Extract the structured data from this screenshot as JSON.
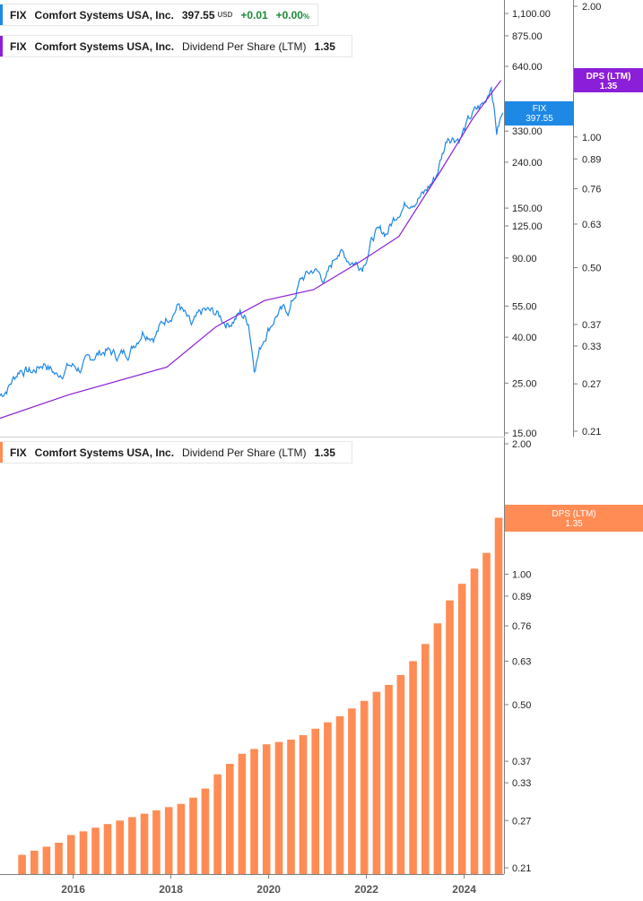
{
  "colors": {
    "price": "#1e88e5",
    "dps_line": "#8b1ed8",
    "dps_bar": "#ff8c55",
    "axis": "#7f7f7f",
    "positive": "#1a8a34"
  },
  "legend_top": {
    "ticker": "FIX",
    "company": "Comfort Systems USA, Inc.",
    "price": "397.55",
    "currency": "USD",
    "change": "+0.01",
    "change_pct": "+0.00",
    "pct_symbol": "%"
  },
  "legend_dps": {
    "ticker": "FIX",
    "company": "Comfort Systems USA, Inc.",
    "metric": "Dividend Per Share (LTM)",
    "value": "1.35"
  },
  "legend_bottom": {
    "ticker": "FIX",
    "company": "Comfort Systems USA, Inc.",
    "metric": "Dividend Per Share (LTM)",
    "value": "1.35"
  },
  "badges": {
    "price_label": "FIX",
    "price_value": "397.55",
    "dps_label": "DPS (LTM)",
    "dps_value": "1.35"
  },
  "chart_data": [
    {
      "type": "line",
      "scale": "log",
      "series": [
        {
          "name": "FIX",
          "axis": "price",
          "points": [
            [
              "2015-01-01",
              22
            ],
            [
              "2015-03-01",
              24
            ],
            [
              "2015-06-01",
              29
            ],
            [
              "2015-09-01",
              28
            ],
            [
              "2015-12-01",
              31
            ],
            [
              "2016-03-01",
              27
            ],
            [
              "2016-06-01",
              30
            ],
            [
              "2016-09-01",
              29
            ],
            [
              "2016-12-01",
              33
            ],
            [
              "2017-03-01",
              35
            ],
            [
              "2017-06-01",
              33
            ],
            [
              "2017-09-01",
              35
            ],
            [
              "2017-12-01",
              43
            ],
            [
              "2018-03-01",
              41
            ],
            [
              "2018-06-01",
              49
            ],
            [
              "2018-09-01",
              56
            ],
            [
              "2018-12-01",
              44
            ],
            [
              "2019-03-01",
              52
            ],
            [
              "2019-06-01",
              51
            ],
            [
              "2019-09-01",
              46
            ],
            [
              "2019-12-01",
              51
            ],
            [
              "2020-02-01",
              47
            ],
            [
              "2020-03-15",
              30
            ],
            [
              "2020-06-01",
              41
            ],
            [
              "2020-09-01",
              51
            ],
            [
              "2020-12-01",
              53
            ],
            [
              "2021-03-01",
              72
            ],
            [
              "2021-06-01",
              80
            ],
            [
              "2021-09-01",
              72
            ],
            [
              "2021-12-01",
              98
            ],
            [
              "2022-03-01",
              88
            ],
            [
              "2022-06-01",
              84
            ],
            [
              "2022-09-01",
              115
            ],
            [
              "2022-12-01",
              117
            ],
            [
              "2023-03-01",
              148
            ],
            [
              "2023-06-01",
              164
            ],
            [
              "2023-09-01",
              172
            ],
            [
              "2023-12-01",
              206
            ],
            [
              "2024-03-01",
              316
            ],
            [
              "2024-06-01",
              310
            ],
            [
              "2024-09-01",
              390
            ],
            [
              "2024-12-01",
              440
            ],
            [
              "2025-01-20",
              540
            ],
            [
              "2025-03-01",
              330
            ],
            [
              "2025-04-15",
              397.55
            ]
          ]
        },
        {
          "name": "Dividend Per Share (LTM)",
          "axis": "dps",
          "points": [
            [
              "2015-01-01",
              0.225
            ],
            [
              "2016-06-01",
              0.255
            ],
            [
              "2018-06-01",
              0.295
            ],
            [
              "2019-06-01",
              0.365
            ],
            [
              "2020-06-01",
              0.42
            ],
            [
              "2021-06-01",
              0.445
            ],
            [
              "2022-06-01",
              0.52
            ],
            [
              "2023-03-01",
              0.59
            ],
            [
              "2024-01-01",
              0.83
            ],
            [
              "2024-09-01",
              1.1
            ],
            [
              "2025-04-01",
              1.35
            ]
          ]
        }
      ],
      "price_axis": {
        "ticks": [
          "1,100.00",
          "875.00",
          "640.00",
          "330.00",
          "240.00",
          "150.00",
          "125.00",
          "90.00",
          "55.00",
          "40.00",
          "25.00",
          "15.00"
        ],
        "tick_values": [
          1100,
          875,
          640,
          330,
          240,
          150,
          125,
          90,
          55,
          40,
          25,
          15
        ]
      },
      "dps_axis": {
        "ticks": [
          "2.00",
          "1.00",
          "0.89",
          "0.76",
          "0.63",
          "0.50",
          "0.37",
          "0.33",
          "0.27",
          "0.21"
        ],
        "tick_values": [
          2.0,
          1.0,
          0.89,
          0.76,
          0.63,
          0.5,
          0.37,
          0.33,
          0.27,
          0.21
        ]
      }
    },
    {
      "type": "bar",
      "scale": "log",
      "series": [
        {
          "name": "Dividend Per Share (LTM)",
          "x": [
            "2015-06",
            "2015-09",
            "2015-12",
            "2016-03",
            "2016-06",
            "2016-09",
            "2016-12",
            "2017-03",
            "2017-06",
            "2017-09",
            "2017-12",
            "2018-03",
            "2018-06",
            "2018-09",
            "2018-12",
            "2019-03",
            "2019-06",
            "2019-09",
            "2019-12",
            "2020-03",
            "2020-06",
            "2020-09",
            "2020-12",
            "2021-03",
            "2021-06",
            "2021-09",
            "2021-12",
            "2022-03",
            "2022-06",
            "2022-09",
            "2022-12",
            "2023-03",
            "2023-06",
            "2023-09",
            "2023-12",
            "2024-03",
            "2024-06",
            "2024-09",
            "2024-12",
            "2025-03"
          ],
          "values": [
            0.225,
            0.23,
            0.235,
            0.24,
            0.25,
            0.255,
            0.26,
            0.265,
            0.27,
            0.275,
            0.28,
            0.285,
            0.29,
            0.295,
            0.305,
            0.32,
            0.345,
            0.365,
            0.385,
            0.395,
            0.405,
            0.41,
            0.415,
            0.425,
            0.44,
            0.455,
            0.47,
            0.49,
            0.51,
            0.535,
            0.555,
            0.585,
            0.63,
            0.69,
            0.77,
            0.87,
            0.95,
            1.03,
            1.12,
            1.35
          ]
        }
      ],
      "x_ticks": [
        "2016",
        "2018",
        "2020",
        "2022",
        "2024"
      ],
      "y_axis": {
        "ticks": [
          "2.00",
          "1.00",
          "0.89",
          "0.76",
          "0.63",
          "0.50",
          "0.37",
          "0.33",
          "0.27",
          "0.21"
        ],
        "tick_values": [
          2.0,
          1.0,
          0.89,
          0.76,
          0.63,
          0.5,
          0.37,
          0.33,
          0.27,
          0.21
        ]
      }
    }
  ]
}
